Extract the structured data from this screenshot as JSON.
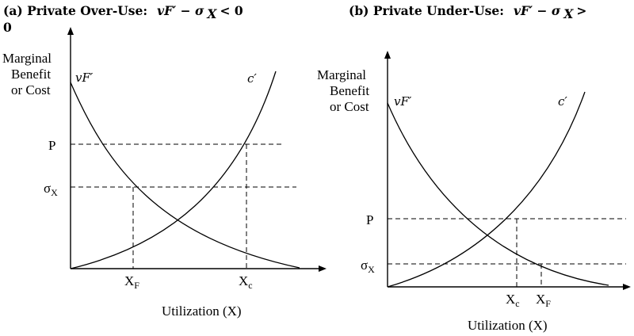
{
  "panel_a": {
    "title_prefix": "(a)  Private Over-Use:",
    "title_math": "vF′ − σ",
    "title_math_sub": "X",
    "title_suffix": " < 0",
    "title_wrap": "0",
    "ylabel_line1": "Marginal",
    "ylabel_line2": "Benefit",
    "ylabel_line3": "or Cost",
    "benefit_curve_label": "vF′",
    "cost_curve_label": "c′",
    "tick_p": "P",
    "tick_sigma": "σ",
    "tick_sigma_sub": "X",
    "tick_xf": "X",
    "tick_xf_sub": "F",
    "tick_xc": "X",
    "tick_xc_sub": "c",
    "xlabel": "Utilization (X)"
  },
  "panel_b": {
    "title_prefix": "(b)  Private  Under-Use:",
    "title_math": "vF′ − σ",
    "title_math_sub": "X",
    "title_suffix": " >",
    "ylabel_line1": "Marginal",
    "ylabel_line2": "Benefit",
    "ylabel_line3": "or Cost",
    "benefit_curve_label": "vF′",
    "cost_curve_label": "c′",
    "tick_p": "P",
    "tick_sigma": "σ",
    "tick_sigma_sub": "X",
    "tick_xc": "X",
    "tick_xc_sub": "c",
    "tick_xf": "X",
    "tick_xf_sub": "F",
    "xlabel": "Utilization (X)"
  }
}
